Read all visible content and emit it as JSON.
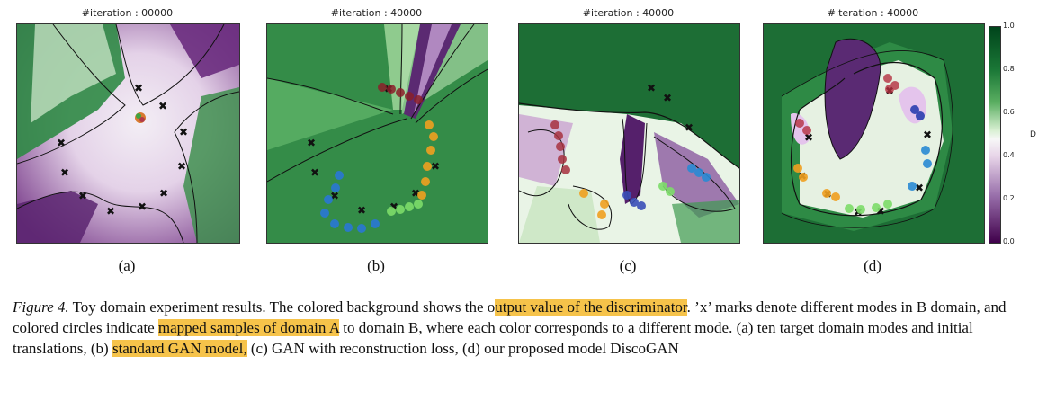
{
  "panels": [
    {
      "title": "#iteration : 00000",
      "label": "(a)"
    },
    {
      "title": "#iteration : 40000",
      "label": "(b)"
    },
    {
      "title": "#iteration : 40000",
      "label": "(c)"
    },
    {
      "title": "#iteration : 40000",
      "label": "(d)"
    }
  ],
  "colorbar": {
    "title": "D",
    "ticks": [
      "1.0",
      "0.8",
      "0.6",
      "0.4",
      "0.2",
      "0.0"
    ]
  },
  "caption": {
    "fig": "Figure 4.",
    "t1": " Toy domain experiment results. The colored background shows the o",
    "h1": "utput value of the discriminator",
    "t2": ". ’x’ marks denote different modes in B domain, and colored circles indicate ",
    "h2": "mapped samples of domain A",
    "t3": " to domain B, where each color corresponds to a different mode. (a) ten target domain modes and initial translations, (b) ",
    "h3": "standard GAN model,",
    "t4": " (c) GAN with reconstruction loss, (d) our proposed model DiscoGAN"
  },
  "colors": {
    "green_dark": "#1b6b34",
    "purple_dark": "#40004b",
    "highlight": "#f6c34a"
  }
}
